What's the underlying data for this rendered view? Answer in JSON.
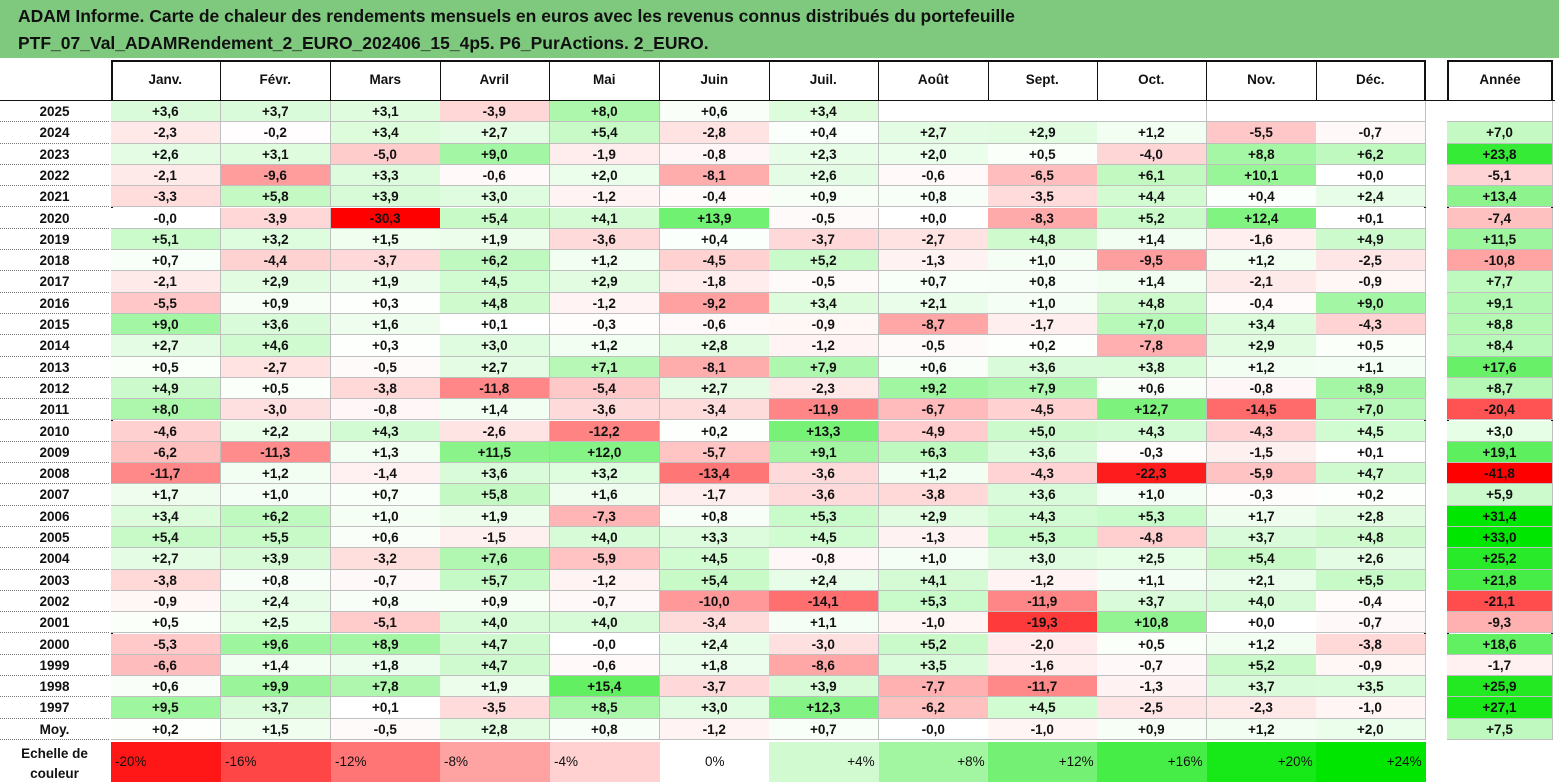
{
  "title": {
    "line1": "ADAM Informe. Carte de chaleur des rendements mensuels en euros avec les revenus connus distribués du portefeuille",
    "line2": "PTF_07_Val_ADAMRendement_2_EURO_202406_15_4p5. P6_PurActions. 2_EURO."
  },
  "chart_data": {
    "type": "heatmap",
    "columns": [
      "Janv.",
      "Févr.",
      "Mars",
      "Avril",
      "Mai",
      "Juin",
      "Juil.",
      "Août",
      "Sept.",
      "Oct.",
      "Nov.",
      "Déc."
    ],
    "year_column": "Année",
    "rows": [
      {
        "label": "2025",
        "months": [
          "+3,6",
          "+3,7",
          "+3,1",
          "-3,9",
          "+8,0",
          "+0,6",
          "+3,4",
          "",
          "",
          "",
          "",
          ""
        ],
        "year": ""
      },
      {
        "label": "2024",
        "months": [
          "-2,3",
          "-0,2",
          "+3,4",
          "+2,7",
          "+5,4",
          "-2,8",
          "+0,4",
          "+2,7",
          "+2,9",
          "+1,2",
          "-5,5",
          "-0,7"
        ],
        "year": "+7,0"
      },
      {
        "label": "2023",
        "months": [
          "+2,6",
          "+3,1",
          "-5,0",
          "+9,0",
          "-1,9",
          "-0,8",
          "+2,3",
          "+2,0",
          "+0,5",
          "-4,0",
          "+8,8",
          "+6,2"
        ],
        "year": "+23,8"
      },
      {
        "label": "2022",
        "months": [
          "-2,1",
          "-9,6",
          "+3,3",
          "-0,6",
          "+2,0",
          "-8,1",
          "+2,6",
          "-0,6",
          "-6,5",
          "+6,1",
          "+10,1",
          "+0,0"
        ],
        "year": "-5,1"
      },
      {
        "label": "2021",
        "months": [
          "-3,3",
          "+5,8",
          "+3,9",
          "+3,0",
          "-1,2",
          "-0,4",
          "+0,9",
          "+0,8",
          "-3,5",
          "+4,4",
          "+0,4",
          "+2,4"
        ],
        "year": "+13,4"
      },
      {
        "label": "2020",
        "months": [
          "-0,0",
          "-3,9",
          "-30,3",
          "+5,4",
          "+4,1",
          "+13,9",
          "-0,5",
          "+0,0",
          "-8,3",
          "+5,2",
          "+12,4",
          "+0,1"
        ],
        "year": "-7,4"
      },
      {
        "label": "2019",
        "months": [
          "+5,1",
          "+3,2",
          "+1,5",
          "+1,9",
          "-3,6",
          "+0,4",
          "-3,7",
          "-2,7",
          "+4,8",
          "+1,4",
          "-1,6",
          "+4,9"
        ],
        "year": "+11,5"
      },
      {
        "label": "2018",
        "months": [
          "+0,7",
          "-4,4",
          "-3,7",
          "+6,2",
          "+1,2",
          "-4,5",
          "+5,2",
          "-1,3",
          "+1,0",
          "-9,5",
          "+1,2",
          "-2,5"
        ],
        "year": "-10,8"
      },
      {
        "label": "2017",
        "months": [
          "-2,1",
          "+2,9",
          "+1,9",
          "+4,5",
          "+2,9",
          "-1,8",
          "-0,5",
          "+0,7",
          "+0,8",
          "+1,4",
          "-2,1",
          "-0,9"
        ],
        "year": "+7,7"
      },
      {
        "label": "2016",
        "months": [
          "-5,5",
          "+0,9",
          "+0,3",
          "+4,8",
          "-1,2",
          "-9,2",
          "+3,4",
          "+2,1",
          "+1,0",
          "+4,8",
          "-0,4",
          "+9,0"
        ],
        "year": "+9,1"
      },
      {
        "label": "2015",
        "months": [
          "+9,0",
          "+3,6",
          "+1,6",
          "+0,1",
          "-0,3",
          "-0,6",
          "-0,9",
          "-8,7",
          "-1,7",
          "+7,0",
          "+3,4",
          "-4,3"
        ],
        "year": "+8,8"
      },
      {
        "label": "2014",
        "months": [
          "+2,7",
          "+4,6",
          "+0,3",
          "+3,0",
          "+1,2",
          "+2,8",
          "-1,2",
          "-0,5",
          "+0,2",
          "-7,8",
          "+2,9",
          "+0,5"
        ],
        "year": "+8,4"
      },
      {
        "label": "2013",
        "months": [
          "+0,5",
          "-2,7",
          "-0,5",
          "+2,7",
          "+7,1",
          "-8,1",
          "+7,9",
          "+0,6",
          "+3,6",
          "+3,8",
          "+1,2",
          "+1,1"
        ],
        "year": "+17,6"
      },
      {
        "label": "2012",
        "months": [
          "+4,9",
          "+0,5",
          "-3,8",
          "-11,8",
          "-5,4",
          "+2,7",
          "-2,3",
          "+9,2",
          "+7,9",
          "+0,6",
          "-0,8",
          "+8,9"
        ],
        "year": "+8,7"
      },
      {
        "label": "2011",
        "months": [
          "+8,0",
          "-3,0",
          "-0,8",
          "+1,4",
          "-3,6",
          "-3,4",
          "-11,9",
          "-6,7",
          "-4,5",
          "+12,7",
          "-14,5",
          "+7,0"
        ],
        "year": "-20,4"
      },
      {
        "label": "2010",
        "months": [
          "-4,6",
          "+2,2",
          "+4,3",
          "-2,6",
          "-12,2",
          "+0,2",
          "+13,3",
          "-4,9",
          "+5,0",
          "+4,3",
          "-4,3",
          "+4,5"
        ],
        "year": "+3,0"
      },
      {
        "label": "2009",
        "months": [
          "-6,2",
          "-11,3",
          "+1,3",
          "+11,5",
          "+12,0",
          "-5,7",
          "+9,1",
          "+6,3",
          "+3,6",
          "-0,3",
          "-1,5",
          "+0,1"
        ],
        "year": "+19,1"
      },
      {
        "label": "2008",
        "months": [
          "-11,7",
          "+1,2",
          "-1,4",
          "+3,6",
          "+3,2",
          "-13,4",
          "-3,6",
          "+1,2",
          "-4,3",
          "-22,3",
          "-5,9",
          "+4,7"
        ],
        "year": "-41,8"
      },
      {
        "label": "2007",
        "months": [
          "+1,7",
          "+1,0",
          "+0,7",
          "+5,8",
          "+1,6",
          "-1,7",
          "-3,6",
          "-3,8",
          "+3,6",
          "+1,0",
          "-0,3",
          "+0,2"
        ],
        "year": "+5,9"
      },
      {
        "label": "2006",
        "months": [
          "+3,4",
          "+6,2",
          "+1,0",
          "+1,9",
          "-7,3",
          "+0,8",
          "+5,3",
          "+2,9",
          "+4,3",
          "+5,3",
          "+1,7",
          "+2,8"
        ],
        "year": "+31,4"
      },
      {
        "label": "2005",
        "months": [
          "+5,4",
          "+5,5",
          "+0,6",
          "-1,5",
          "+4,0",
          "+3,3",
          "+4,5",
          "-1,3",
          "+5,3",
          "-4,8",
          "+3,7",
          "+4,8"
        ],
        "year": "+33,0"
      },
      {
        "label": "2004",
        "months": [
          "+2,7",
          "+3,9",
          "-3,2",
          "+7,6",
          "-5,9",
          "+4,5",
          "-0,8",
          "+1,0",
          "+3,0",
          "+2,5",
          "+5,4",
          "+2,6"
        ],
        "year": "+25,2"
      },
      {
        "label": "2003",
        "months": [
          "-3,8",
          "+0,8",
          "-0,7",
          "+5,7",
          "-1,2",
          "+5,4",
          "+2,4",
          "+4,1",
          "-1,2",
          "+1,1",
          "+2,1",
          "+5,5"
        ],
        "year": "+21,8"
      },
      {
        "label": "2002",
        "months": [
          "-0,9",
          "+2,4",
          "+0,8",
          "+0,9",
          "-0,7",
          "-10,0",
          "-14,1",
          "+5,3",
          "-11,9",
          "+3,7",
          "+4,0",
          "-0,4"
        ],
        "year": "-21,1"
      },
      {
        "label": "2001",
        "months": [
          "+0,5",
          "+2,5",
          "-5,1",
          "+4,0",
          "+4,0",
          "-3,4",
          "+1,1",
          "-1,0",
          "-19,3",
          "+10,8",
          "+0,0",
          "-0,7"
        ],
        "year": "-9,3"
      },
      {
        "label": "2000",
        "months": [
          "-5,3",
          "+9,6",
          "+8,9",
          "+4,7",
          "-0,0",
          "+2,4",
          "-3,0",
          "+5,2",
          "-2,0",
          "+0,5",
          "+1,2",
          "-3,8"
        ],
        "year": "+18,6"
      },
      {
        "label": "1999",
        "months": [
          "-6,6",
          "+1,4",
          "+1,8",
          "+4,7",
          "-0,6",
          "+1,8",
          "-8,6",
          "+3,5",
          "-1,6",
          "-0,7",
          "+5,2",
          "-0,9"
        ],
        "year": "-1,7"
      },
      {
        "label": "1998",
        "months": [
          "+0,6",
          "+9,9",
          "+7,8",
          "+1,9",
          "+15,4",
          "-3,7",
          "+3,9",
          "-7,7",
          "-11,7",
          "-1,3",
          "+3,7",
          "+3,5"
        ],
        "year": "+25,9"
      },
      {
        "label": "1997",
        "months": [
          "+9,5",
          "+3,7",
          "+0,1",
          "-3,5",
          "+8,5",
          "+3,0",
          "+12,3",
          "-6,2",
          "+4,5",
          "-2,5",
          "-2,3",
          "-1,0"
        ],
        "year": "+27,1"
      },
      {
        "label": "Moy.",
        "months": [
          "+0,2",
          "+1,5",
          "-0,5",
          "+2,8",
          "+0,8",
          "-1,2",
          "+0,7",
          "-0,0",
          "-1,0",
          "+0,9",
          "+1,2",
          "+2,0"
        ],
        "year": "+7,5"
      }
    ],
    "scale": {
      "label_line1": "Echelle de",
      "label_line2": "couleur",
      "items": [
        "-20%",
        "-16%",
        "-12%",
        "-8%",
        "-4%",
        "0%",
        "+4%",
        "+8%",
        "+12%",
        "+16%",
        "+20%",
        "+24%"
      ]
    }
  },
  "colors": {
    "title_bg": "#7fc97f",
    "negative_max": "#ff0000",
    "positive_max": "#00e600",
    "neutral": "#ffffff"
  }
}
